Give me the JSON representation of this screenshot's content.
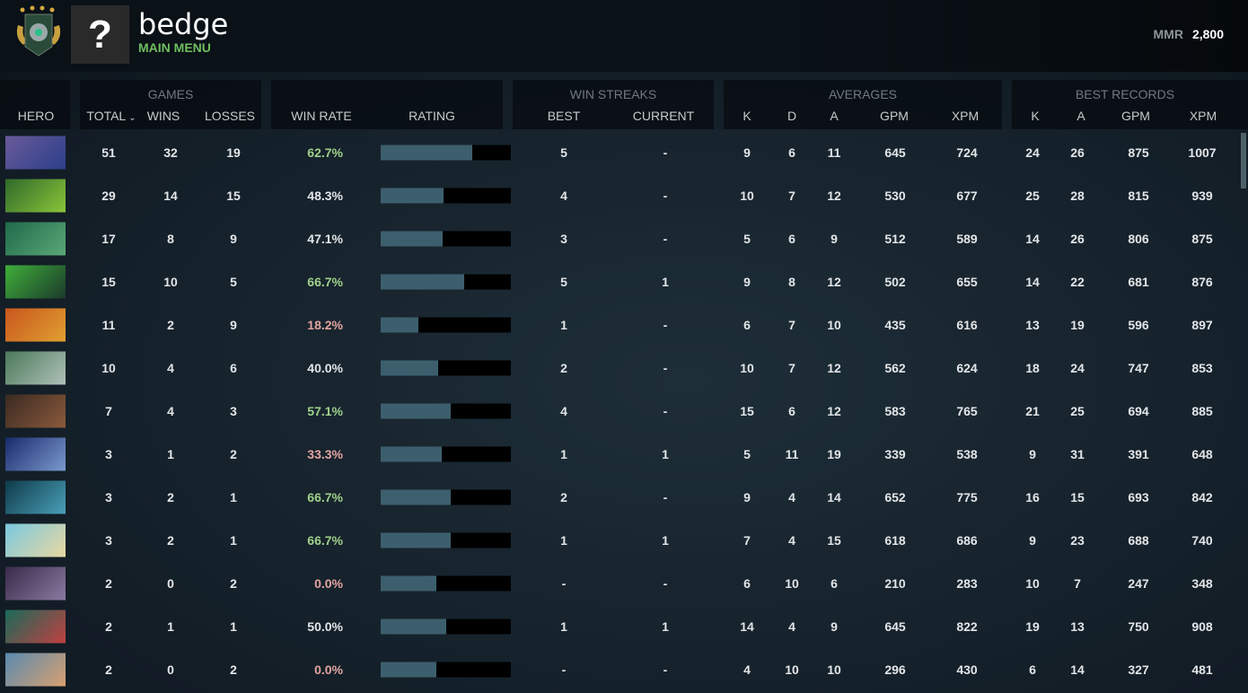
{
  "profile": {
    "name": "bedge",
    "status": "MAIN MENU",
    "avatar_glyph": "?",
    "mmr_label": "MMR",
    "mmr_value": "2,800"
  },
  "header": {
    "hero": "HERO",
    "games": {
      "title": "GAMES",
      "total": "TOTAL",
      "wins": "WINS",
      "losses": "LOSSES",
      "sort_icon": "chevron-down-icon"
    },
    "win_rate": "WIN RATE",
    "rating": "RATING",
    "streaks": {
      "title": "WIN STREAKS",
      "best": "BEST",
      "current": "CURRENT"
    },
    "averages": {
      "title": "AVERAGES",
      "k": "K",
      "d": "D",
      "a": "A",
      "gpm": "GPM",
      "xpm": "XPM"
    },
    "best": {
      "title": "BEST RECORDS",
      "k": "K",
      "a": "A",
      "gpm": "GPM",
      "xpm": "XPM"
    }
  },
  "colors": {
    "positive": "#9fd08a",
    "neutral": "#e3e6e8",
    "negative": "#e2a4a0",
    "status": "#6fbf5f",
    "bar_fill": "#3d5f6d"
  },
  "rows": [
    {
      "portrait": [
        "#6a5a9a",
        "#2b3f8a"
      ],
      "total": "51",
      "wins": "32",
      "losses": "19",
      "win_rate": "62.7%",
      "tone": "positive",
      "rating": 0.7,
      "best_streak": "5",
      "current_streak": "-",
      "k": "9",
      "d": "6",
      "a": "11",
      "gpm": "645",
      "xpm": "724",
      "best_k": "24",
      "best_a": "26",
      "best_gpm": "875",
      "best_xpm": "1007"
    },
    {
      "portrait": [
        "#2f6a2a",
        "#8ac43a"
      ],
      "total": "29",
      "wins": "14",
      "losses": "15",
      "win_rate": "48.3%",
      "tone": "neutral",
      "rating": 0.48,
      "best_streak": "4",
      "current_streak": "-",
      "k": "10",
      "d": "7",
      "a": "12",
      "gpm": "530",
      "xpm": "677",
      "best_k": "25",
      "best_a": "28",
      "best_gpm": "815",
      "best_xpm": "939"
    },
    {
      "portrait": [
        "#1f6a4a",
        "#5aa878"
      ],
      "total": "17",
      "wins": "8",
      "losses": "9",
      "win_rate": "47.1%",
      "tone": "neutral",
      "rating": 0.476,
      "best_streak": "3",
      "current_streak": "-",
      "k": "5",
      "d": "6",
      "a": "9",
      "gpm": "512",
      "xpm": "589",
      "best_k": "14",
      "best_a": "26",
      "best_gpm": "806",
      "best_xpm": "875"
    },
    {
      "portrait": [
        "#3fae3a",
        "#1b3a2a"
      ],
      "total": "15",
      "wins": "10",
      "losses": "5",
      "win_rate": "66.7%",
      "tone": "positive",
      "rating": 0.64,
      "best_streak": "5",
      "current_streak": "1",
      "k": "9",
      "d": "8",
      "a": "12",
      "gpm": "502",
      "xpm": "655",
      "best_k": "14",
      "best_a": "22",
      "best_gpm": "681",
      "best_xpm": "876"
    },
    {
      "portrait": [
        "#c8561e",
        "#e0a030"
      ],
      "total": "11",
      "wins": "2",
      "losses": "9",
      "win_rate": "18.2%",
      "tone": "negative",
      "rating": 0.29,
      "best_streak": "1",
      "current_streak": "-",
      "k": "6",
      "d": "7",
      "a": "10",
      "gpm": "435",
      "xpm": "616",
      "best_k": "13",
      "best_a": "19",
      "best_gpm": "596",
      "best_xpm": "897"
    },
    {
      "portrait": [
        "#4a7a5a",
        "#b0c0b8"
      ],
      "total": "10",
      "wins": "4",
      "losses": "6",
      "win_rate": "40.0%",
      "tone": "neutral",
      "rating": 0.44,
      "best_streak": "2",
      "current_streak": "-",
      "k": "10",
      "d": "7",
      "a": "12",
      "gpm": "562",
      "xpm": "624",
      "best_k": "18",
      "best_a": "24",
      "best_gpm": "747",
      "best_xpm": "853"
    },
    {
      "portrait": [
        "#3a2a22",
        "#8a5a3a"
      ],
      "total": "7",
      "wins": "4",
      "losses": "3",
      "win_rate": "57.1%",
      "tone": "positive",
      "rating": 0.54,
      "best_streak": "4",
      "current_streak": "-",
      "k": "15",
      "d": "6",
      "a": "12",
      "gpm": "583",
      "xpm": "765",
      "best_k": "21",
      "best_a": "25",
      "best_gpm": "694",
      "best_xpm": "885"
    },
    {
      "portrait": [
        "#1a2a6a",
        "#7a9ad0"
      ],
      "total": "3",
      "wins": "1",
      "losses": "2",
      "win_rate": "33.3%",
      "tone": "negative",
      "rating": 0.47,
      "best_streak": "1",
      "current_streak": "1",
      "k": "5",
      "d": "11",
      "a": "19",
      "gpm": "339",
      "xpm": "538",
      "best_k": "9",
      "best_a": "31",
      "best_gpm": "391",
      "best_xpm": "648"
    },
    {
      "portrait": [
        "#0e3a4a",
        "#4aa0b8"
      ],
      "total": "3",
      "wins": "2",
      "losses": "1",
      "win_rate": "66.7%",
      "tone": "positive",
      "rating": 0.54,
      "best_streak": "2",
      "current_streak": "-",
      "k": "9",
      "d": "4",
      "a": "14",
      "gpm": "652",
      "xpm": "775",
      "best_k": "16",
      "best_a": "15",
      "best_gpm": "693",
      "best_xpm": "842"
    },
    {
      "portrait": [
        "#7ac8e0",
        "#e8d8a0"
      ],
      "total": "3",
      "wins": "2",
      "losses": "1",
      "win_rate": "66.7%",
      "tone": "positive",
      "rating": 0.54,
      "best_streak": "1",
      "current_streak": "1",
      "k": "7",
      "d": "4",
      "a": "15",
      "gpm": "618",
      "xpm": "686",
      "best_k": "9",
      "best_a": "23",
      "best_gpm": "688",
      "best_xpm": "740"
    },
    {
      "portrait": [
        "#3a2a4a",
        "#8a7aa0"
      ],
      "total": "2",
      "wins": "0",
      "losses": "2",
      "win_rate": "0.0%",
      "tone": "negative",
      "rating": 0.43,
      "best_streak": "-",
      "current_streak": "-",
      "k": "6",
      "d": "10",
      "a": "6",
      "gpm": "210",
      "xpm": "283",
      "best_k": "10",
      "best_a": "7",
      "best_gpm": "247",
      "best_xpm": "348"
    },
    {
      "portrait": [
        "#1a6a5a",
        "#c04040"
      ],
      "total": "2",
      "wins": "1",
      "losses": "1",
      "win_rate": "50.0%",
      "tone": "neutral",
      "rating": 0.5,
      "best_streak": "1",
      "current_streak": "1",
      "k": "14",
      "d": "4",
      "a": "9",
      "gpm": "645",
      "xpm": "822",
      "best_k": "19",
      "best_a": "13",
      "best_gpm": "750",
      "best_xpm": "908"
    },
    {
      "portrait": [
        "#5a8ab0",
        "#d8a070"
      ],
      "total": "2",
      "wins": "0",
      "losses": "2",
      "win_rate": "0.0%",
      "tone": "negative",
      "rating": 0.43,
      "best_streak": "-",
      "current_streak": "-",
      "k": "4",
      "d": "10",
      "a": "10",
      "gpm": "296",
      "xpm": "430",
      "best_k": "6",
      "best_a": "14",
      "best_gpm": "327",
      "best_xpm": "481"
    }
  ]
}
